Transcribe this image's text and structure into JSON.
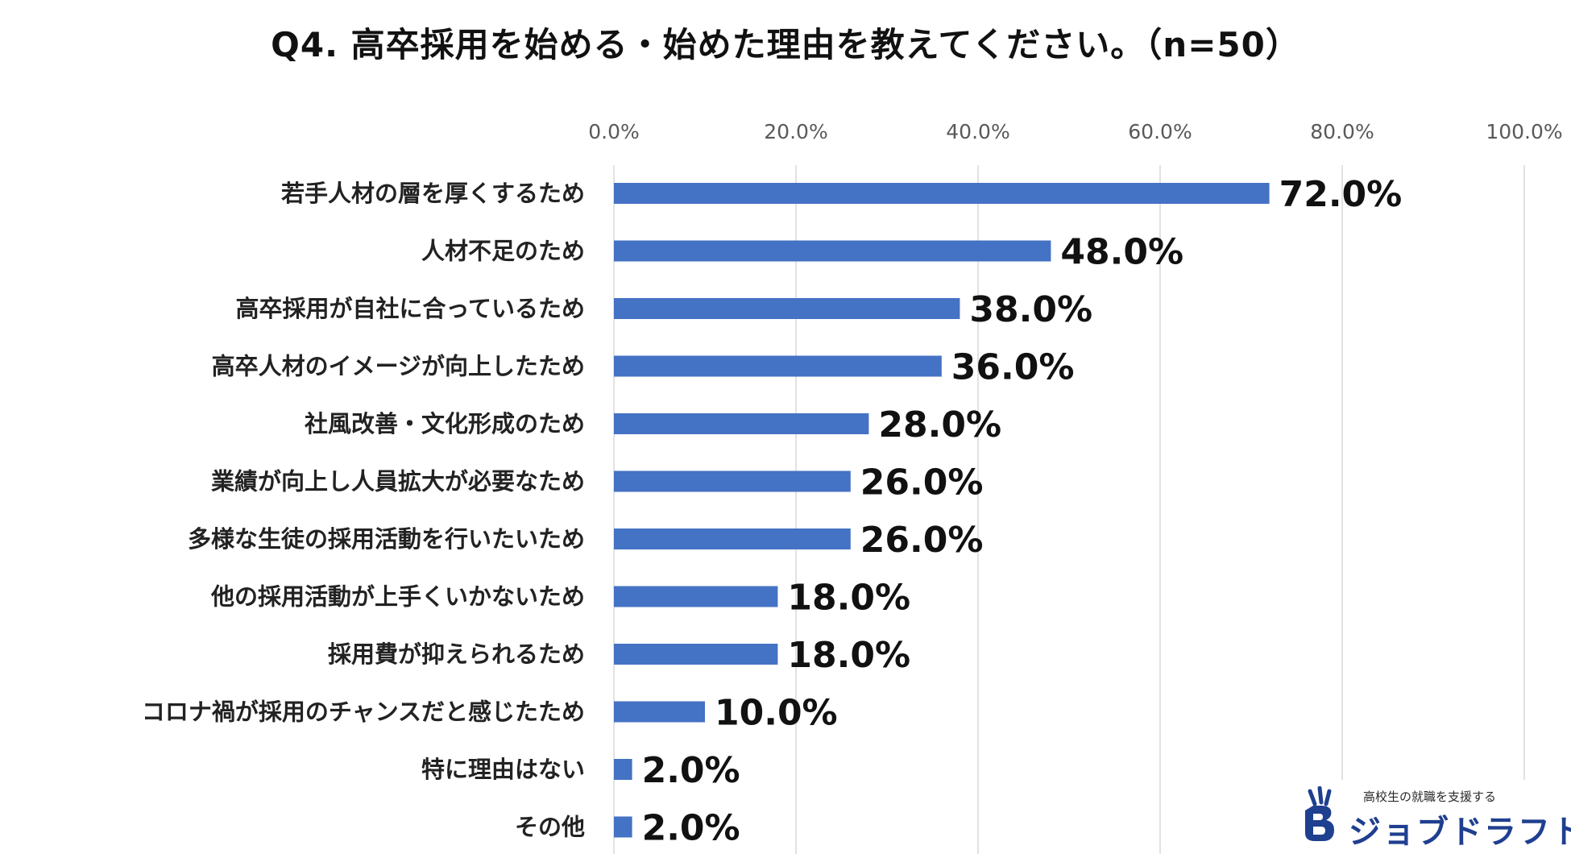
{
  "chart_data": {
    "type": "bar",
    "orientation": "horizontal",
    "title": "Q4. 高卒採用を始める・始めた理由を教えてください。（n=50）",
    "categories": [
      "若手人材の層を厚くするため",
      "人材不足のため",
      "高卒採用が自社に合っているため",
      "高卒人材のイメージが向上したため",
      "社風改善・文化形成のため",
      "業績が向上し人員拡大が必要なため",
      "多様な生徒の採用活動を行いたいため",
      "他の採用活動が上手くいかないため",
      "採用費が抑えられるため",
      "コロナ禍が採用のチャンスだと感じたため",
      "特に理由はない",
      "その他"
    ],
    "values": [
      72.0,
      48.0,
      38.0,
      36.0,
      28.0,
      26.0,
      26.0,
      18.0,
      18.0,
      10.0,
      2.0,
      2.0
    ],
    "data_labels": [
      "72.0%",
      "48.0%",
      "38.0%",
      "36.0%",
      "28.0%",
      "26.0%",
      "26.0%",
      "18.0%",
      "18.0%",
      "10.0%",
      "2.0%",
      "2.0%"
    ],
    "xlim": [
      0,
      100
    ],
    "x_ticks": [
      0,
      20,
      40,
      60,
      80,
      100
    ],
    "x_tick_labels": [
      "0.0%",
      "20.0%",
      "40.0%",
      "60.0%",
      "80.0%",
      "100.0%"
    ],
    "axis_position": "top",
    "grid": true,
    "bar_color": "#4472C4",
    "grid_color": "#D9D9D9"
  },
  "logo": {
    "tagline": "高校生の就職を支援する",
    "name": "ジョブドラフト",
    "color": "#1F3F8F"
  }
}
